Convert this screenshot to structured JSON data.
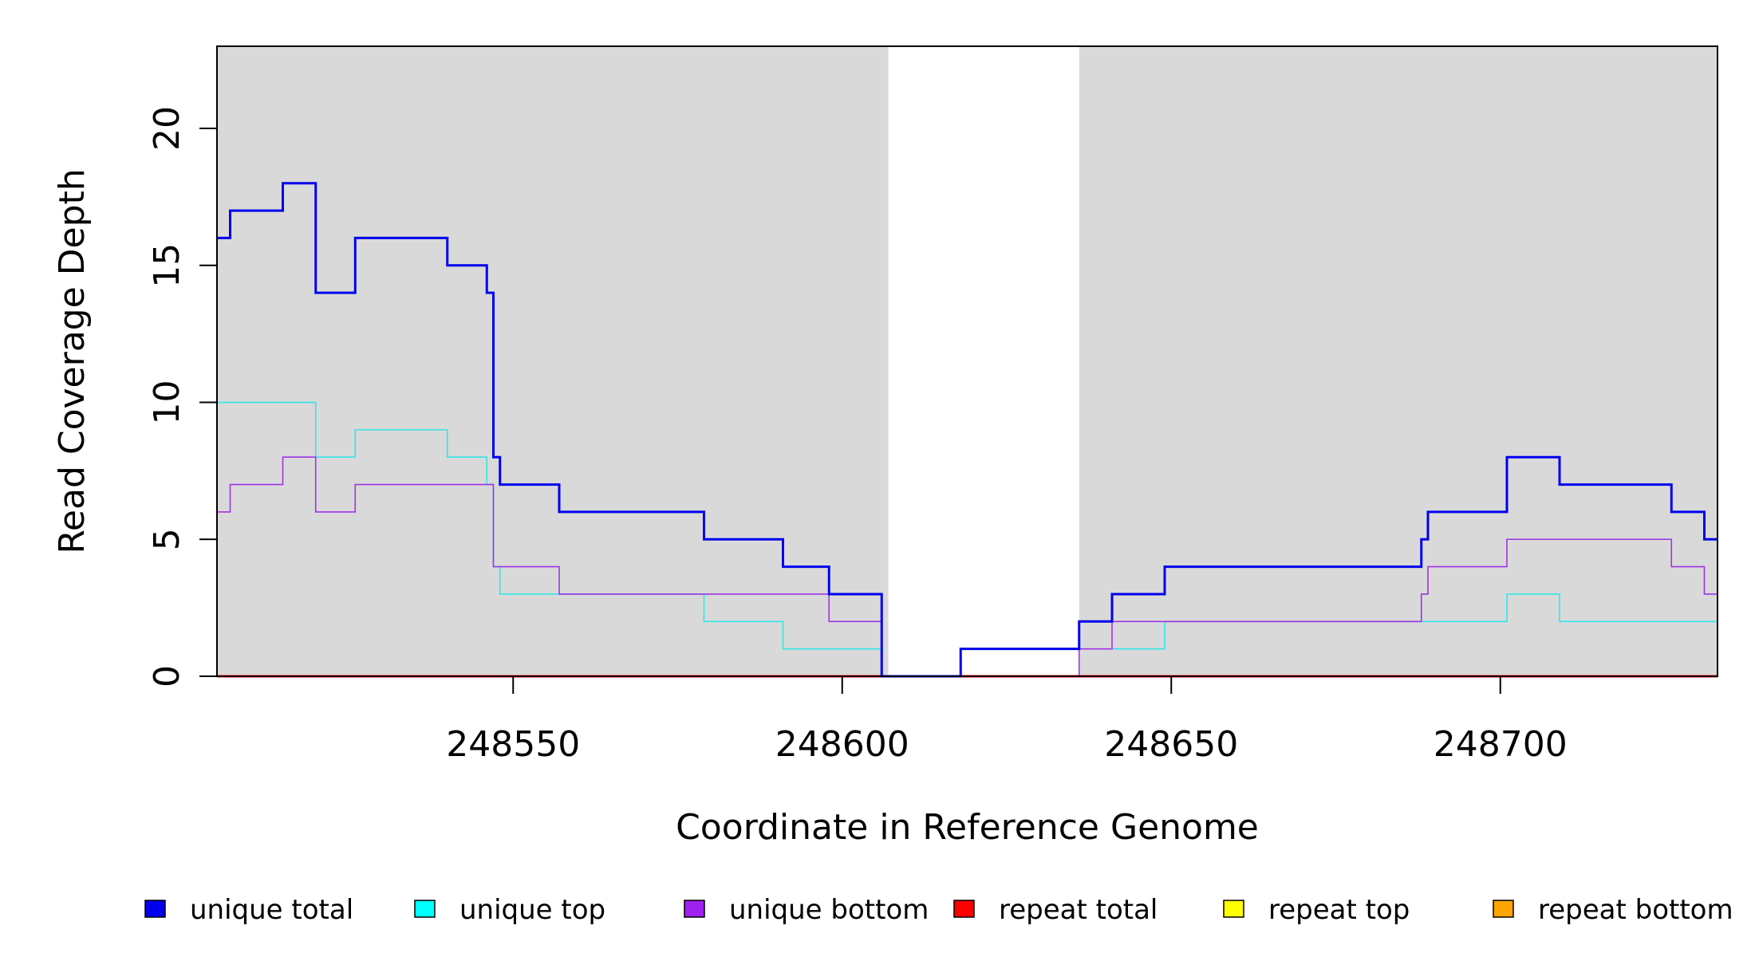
{
  "chart_data": {
    "type": "line",
    "xlabel": "Coordinate in Reference Genome",
    "ylabel": "Read Coverage Depth",
    "xlim": [
      248505,
      248733
    ],
    "ylim": [
      0,
      23
    ],
    "xticks": [
      248550,
      248600,
      248650,
      248700
    ],
    "yticks": [
      0,
      5,
      10,
      15,
      20
    ],
    "grid": false,
    "background_regions": [
      {
        "from": 248505,
        "to": 248607,
        "color": "#d9d9d9"
      },
      {
        "from": 248636,
        "to": 248733,
        "color": "#d9d9d9"
      }
    ],
    "series": [
      {
        "name": "unique total",
        "color": "#0000ee",
        "step_points": [
          [
            248505,
            16
          ],
          [
            248507,
            17
          ],
          [
            248515,
            18
          ],
          [
            248520,
            14
          ],
          [
            248526,
            16
          ],
          [
            248540,
            15
          ],
          [
            248546,
            14
          ],
          [
            248547,
            8
          ],
          [
            248548,
            7
          ],
          [
            248557,
            6
          ],
          [
            248579,
            5
          ],
          [
            248591,
            4
          ],
          [
            248598,
            3
          ],
          [
            248606,
            0
          ],
          [
            248618,
            1
          ],
          [
            248636,
            2
          ],
          [
            248641,
            3
          ],
          [
            248649,
            4
          ],
          [
            248688,
            5
          ],
          [
            248689,
            6
          ],
          [
            248701,
            8
          ],
          [
            248709,
            7
          ],
          [
            248726,
            6
          ],
          [
            248731,
            5
          ],
          [
            248733,
            5
          ]
        ]
      },
      {
        "name": "unique top",
        "color": "#33e6e6",
        "step_points": [
          [
            248505,
            10
          ],
          [
            248520,
            8
          ],
          [
            248526,
            9
          ],
          [
            248540,
            8
          ],
          [
            248546,
            7
          ],
          [
            248547,
            4
          ],
          [
            248548,
            3
          ],
          [
            248579,
            2
          ],
          [
            248591,
            1
          ],
          [
            248606,
            0
          ],
          [
            248618,
            1
          ],
          [
            248636,
            1
          ],
          [
            248649,
            2
          ],
          [
            248701,
            3
          ],
          [
            248709,
            2
          ],
          [
            248733,
            2
          ]
        ]
      },
      {
        "name": "unique bottom",
        "color": "#a033e6",
        "step_points": [
          [
            248505,
            6
          ],
          [
            248507,
            7
          ],
          [
            248515,
            8
          ],
          [
            248520,
            6
          ],
          [
            248526,
            7
          ],
          [
            248547,
            4
          ],
          [
            248557,
            3
          ],
          [
            248598,
            2
          ],
          [
            248606,
            0
          ],
          [
            248636,
            1
          ],
          [
            248641,
            2
          ],
          [
            248688,
            3
          ],
          [
            248689,
            4
          ],
          [
            248701,
            5
          ],
          [
            248726,
            4
          ],
          [
            248731,
            3
          ],
          [
            248733,
            3
          ]
        ]
      },
      {
        "name": "repeat total",
        "color": "#ff0000",
        "step_points": [
          [
            248505,
            0
          ],
          [
            248733,
            0
          ]
        ]
      },
      {
        "name": "repeat top",
        "color": "#ffff00",
        "step_points": [
          [
            248505,
            0
          ],
          [
            248733,
            0
          ]
        ]
      },
      {
        "name": "repeat bottom",
        "color": "#ffa500",
        "step_points": [
          [
            248505,
            0
          ],
          [
            248733,
            0
          ]
        ]
      }
    ],
    "legend": {
      "placement": "bottom",
      "items": [
        {
          "label": "unique total",
          "color": "#0000ee"
        },
        {
          "label": "unique top",
          "color": "#00ffff"
        },
        {
          "label": "unique bottom",
          "color": "#a020f0"
        },
        {
          "label": "repeat total",
          "color": "#ff0000"
        },
        {
          "label": "repeat top",
          "color": "#ffff00"
        },
        {
          "label": "repeat bottom",
          "color": "#ffa500"
        }
      ]
    }
  }
}
